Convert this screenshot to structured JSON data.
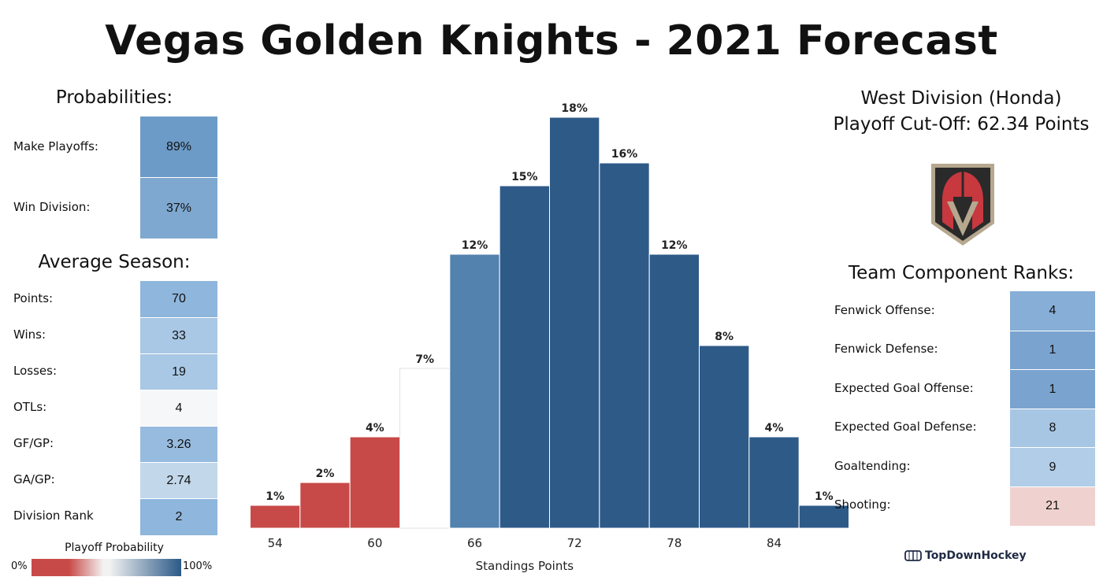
{
  "title": "Vegas Golden Knights - 2021 Forecast",
  "probabilities": {
    "heading": "Probabilities:",
    "rows": [
      {
        "label": "Make Playoffs:",
        "value": "89%",
        "color": "#6d9bc8"
      },
      {
        "label": "Win Division:",
        "value": "37%",
        "color": "#7ea8d0"
      }
    ]
  },
  "average_season": {
    "heading": "Average Season:",
    "rows": [
      {
        "label": "Points:",
        "value": "70",
        "color": "#8fb6dc"
      },
      {
        "label": "Wins:",
        "value": "33",
        "color": "#a9c8e5"
      },
      {
        "label": "Losses:",
        "value": "19",
        "color": "#a9c8e5"
      },
      {
        "label": "OTLs:",
        "value": "4",
        "color": "#f6f7f9"
      },
      {
        "label": "GF/GP:",
        "value": "3.26",
        "color": "#97bbdf"
      },
      {
        "label": "GA/GP:",
        "value": "2.74",
        "color": "#c2d7ea"
      },
      {
        "label": "Division Rank",
        "value": "2",
        "color": "#8fb6dc"
      }
    ]
  },
  "legend": {
    "title": "Playoff Probability",
    "min_label": "0%",
    "max_label": "100%",
    "colors": [
      "#c84a48",
      "#f2f2f2",
      "#2b5987"
    ]
  },
  "division": {
    "line1": "West Division (Honda)",
    "line2": "Playoff Cut-Off: 62.34 Points"
  },
  "logo_icon": "golden-knights-helmet-icon",
  "component_ranks": {
    "heading": "Team Component Ranks:",
    "rows": [
      {
        "label": "Fenwick Offense:",
        "value": "4",
        "color": "#86aed6"
      },
      {
        "label": "Fenwick Defense:",
        "value": "1",
        "color": "#7aa4cf"
      },
      {
        "label": "Expected Goal Offense:",
        "value": "1",
        "color": "#7aa4cf"
      },
      {
        "label": "Expected Goal Defense:",
        "value": "8",
        "color": "#a7c6e4"
      },
      {
        "label": "Goaltending:",
        "value": "9",
        "color": "#b1cde7"
      },
      {
        "label": "Shooting:",
        "value": "21",
        "color": "#efd2cf"
      }
    ]
  },
  "brand": "TopDownHockey",
  "chart_data": {
    "type": "bar",
    "xlabel": "Standings Points",
    "x_ticks": [
      54,
      60,
      66,
      72,
      78,
      84
    ],
    "bin_width": 3,
    "bins": [
      {
        "start": 52.5,
        "value": 1,
        "label": "1%",
        "color": "#c84a48"
      },
      {
        "start": 55.5,
        "value": 2,
        "label": "2%",
        "color": "#c84a48"
      },
      {
        "start": 58.5,
        "value": 4,
        "label": "4%",
        "color": "#c84a48"
      },
      {
        "start": 61.5,
        "value": 7,
        "label": "7%",
        "color": "#ffffff"
      },
      {
        "start": 64.5,
        "value": 12,
        "label": "12%",
        "color": "#5282ad"
      },
      {
        "start": 67.5,
        "value": 15,
        "label": "15%",
        "color": "#2e5a88"
      },
      {
        "start": 70.5,
        "value": 18,
        "label": "18%",
        "color": "#2e5a88"
      },
      {
        "start": 73.5,
        "value": 16,
        "label": "16%",
        "color": "#2e5a88"
      },
      {
        "start": 76.5,
        "value": 12,
        "label": "12%",
        "color": "#2e5a88"
      },
      {
        "start": 79.5,
        "value": 8,
        "label": "8%",
        "color": "#2e5a88"
      },
      {
        "start": 82.5,
        "value": 4,
        "label": "4%",
        "color": "#2e5a88"
      },
      {
        "start": 85.5,
        "value": 1,
        "label": "1%",
        "color": "#2e5a88"
      }
    ],
    "xlim": [
      52.5,
      88.5
    ],
    "ylim": [
      0,
      18
    ],
    "grid": false
  }
}
